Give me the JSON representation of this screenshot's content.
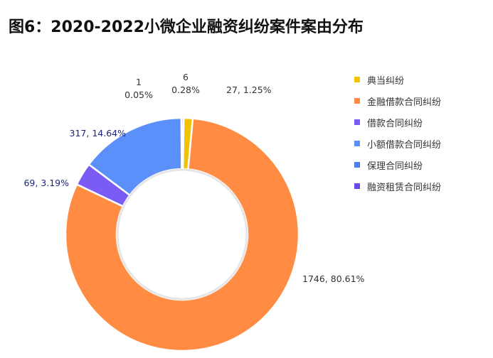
{
  "title": "图6：2020-2022小微企业融资纠纷案件案由分布",
  "chart_data": {
    "type": "pie",
    "style": "donut",
    "categories": [
      "典当纠纷",
      "金融借款合同纠纷",
      "借款合同纠纷",
      "小额借款合同纠纷",
      "保理合同纠纷",
      "融资租赁合同纠纷"
    ],
    "series": [
      {
        "values": [
          27,
          1746,
          69,
          317,
          1,
          6
        ],
        "labels": [
          "27, 1.25%",
          "1746, 80.61%",
          "69, 3.19%",
          "317, 14.64%",
          "1\n0.05%",
          "6\n0.28%"
        ]
      }
    ],
    "colors": [
      "#f2c200",
      "#ff8c42",
      "#7a5cf5",
      "#5b8ff9",
      "#4f7fe8",
      "#6a4be6"
    ],
    "label_colors": [
      "#333333",
      "#333333",
      "#1a237e",
      "#1a237e",
      "#333333",
      "#333333"
    ],
    "legend_position": "right"
  }
}
